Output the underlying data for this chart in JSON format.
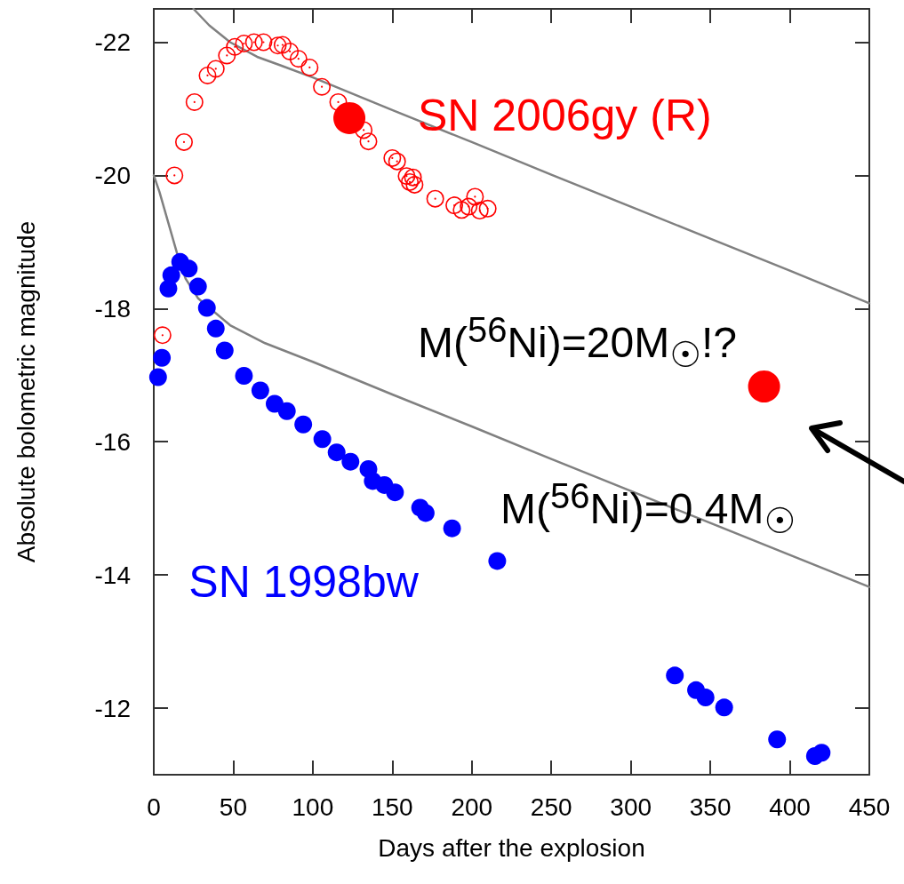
{
  "chart_data": {
    "type": "scatter",
    "xlabel": "Days after the explosion",
    "ylabel": "Absolute bolometric magnitude",
    "xlim": [
      0,
      450
    ],
    "xticks": [
      0,
      50,
      100,
      150,
      200,
      250,
      300,
      350,
      400,
      450
    ],
    "annotations": [
      "M($^{56}$Ni)=20M$_{☉}$!?"
    ],
    "ylim": [
      -11,
      -22.5
    ],
    "yticks": [
      -22,
      -20,
      -18,
      -16,
      -14,
      -12
    ],
    "grid": false,
    "legend": false,
    "series": [
      {
        "name": "SN 2006gy (R)",
        "color": "#ff0000",
        "marker": "circle",
        "x": [
          5.5,
          13,
          19,
          25.6,
          33.8,
          39,
          46,
          51,
          56.7,
          63,
          69,
          78,
          81,
          85.6,
          91,
          98,
          105.7,
          116,
          132,
          135,
          150,
          153,
          159,
          161,
          163,
          164,
          177,
          189,
          193.6,
          198,
          202,
          205,
          210
        ],
        "values": [
          -17.6,
          -20.0,
          -20.5,
          -21.1,
          -21.5,
          -21.6,
          -21.8,
          -21.93,
          -21.98,
          -22.0,
          -22.0,
          -21.95,
          -21.96,
          -21.86,
          -21.75,
          -21.62,
          -21.33,
          -21.1,
          -20.68,
          -20.51,
          -20.26,
          -20.21,
          -19.99,
          -19.9,
          -19.97,
          -19.86,
          -19.65,
          -19.55,
          -19.48,
          -19.53,
          -19.68,
          -19.47,
          -19.5
        ]
      },
      {
        "color": "#ff0000",
        "marker": "circle",
        "x": [
          123,
          383.8
        ],
        "values": [
          -20.86,
          -16.83
        ]
      },
      {
        "name": "SN 1998bw",
        "color": "#0000ff",
        "marker": "circle",
        "x": [
          2.7,
          5.1,
          9.2,
          11,
          16.6,
          22,
          27.8,
          33.4,
          39,
          44.6,
          56.7,
          67,
          76,
          83.7,
          94,
          106,
          115,
          123.7,
          135,
          137.7,
          145,
          151.7,
          167.5,
          171,
          187.6,
          216,
          327.7,
          341,
          347,
          358.7,
          392,
          415.8,
          420
        ],
        "values": [
          -16.97,
          -17.26,
          -18.3,
          -18.5,
          -18.7,
          -18.6,
          -18.33,
          -18.01,
          -17.7,
          -17.37,
          -16.99,
          -16.77,
          -16.57,
          -16.46,
          -16.26,
          -16.04,
          -15.84,
          -15.7,
          -15.59,
          -15.41,
          -15.35,
          -15.24,
          -15.01,
          -14.93,
          -14.7,
          -14.21,
          -12.49,
          -12.27,
          -12.16,
          -12.01,
          -11.53,
          -11.28,
          -11.33
        ]
      },
      {
        "type": "line",
        "color": "#808080",
        "marker": "none",
        "line_style": "solid",
        "x": [
          25,
          35,
          48,
          65,
          80,
          100,
          150,
          200,
          250,
          300,
          350,
          400,
          450
        ],
        "values": [
          -22.5,
          -22.25,
          -22.0,
          -21.78,
          -21.65,
          -21.47,
          -20.98,
          -20.5,
          -20.01,
          -19.53,
          -19.05,
          -18.57,
          -18.08
        ]
      },
      {
        "name": "M($^{56}$Ni)=0.4M$_{☉}$",
        "type": "line",
        "color": "#808080",
        "marker": "none",
        "line_style": "solid",
        "x": [
          0,
          3.6,
          9,
          15,
          20,
          28,
          37,
          48,
          70,
          100,
          150,
          200,
          250,
          300,
          350,
          400,
          450
        ],
        "values": [
          -20.0,
          -19.75,
          -19.3,
          -18.8,
          -18.45,
          -18.15,
          -17.97,
          -17.75,
          -17.48,
          -17.2,
          -16.71,
          -16.23,
          -15.74,
          -15.26,
          -14.78,
          -14.3,
          -13.82
        ]
      }
    ]
  }
}
